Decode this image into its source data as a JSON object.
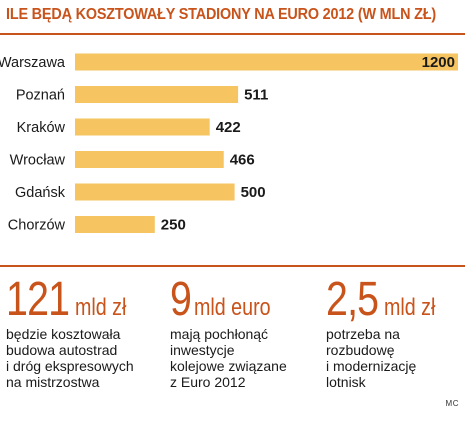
{
  "title": "ILE BĘDĄ KOSZTOWAŁY STADIONY NA EURO 2012 (W MLN ZŁ)",
  "colors": {
    "accent": "#c8531b",
    "bar": "#f6c461",
    "text": "#1a1a1a"
  },
  "chart_data": {
    "type": "bar",
    "orientation": "horizontal",
    "categories": [
      "Warszawa",
      "Poznań",
      "Kraków",
      "Wrocław",
      "Gdańsk",
      "Chorzów"
    ],
    "values": [
      1200,
      511,
      422,
      466,
      500,
      250
    ],
    "value_labels": [
      "1200",
      "511",
      "422",
      "466",
      "500",
      "250"
    ],
    "xlim": [
      0,
      1200
    ],
    "grid": false,
    "legend": "none"
  },
  "stats": [
    {
      "number": "121",
      "unit": "mld zł",
      "description": "będzie kosztowała\nbudowa autostrad\ni dróg ekspresowych\nna mistrzostwa"
    },
    {
      "number": "9",
      "unit": "mld euro",
      "description": "mają pochłonąć\ninwestycje\nkolejowe związane\nz Euro 2012"
    },
    {
      "number": "2,5",
      "unit": "mld zł",
      "description": "potrzeba na\nrozbudowę\ni modernizację\nlotnisk"
    }
  ],
  "credit": "MC"
}
